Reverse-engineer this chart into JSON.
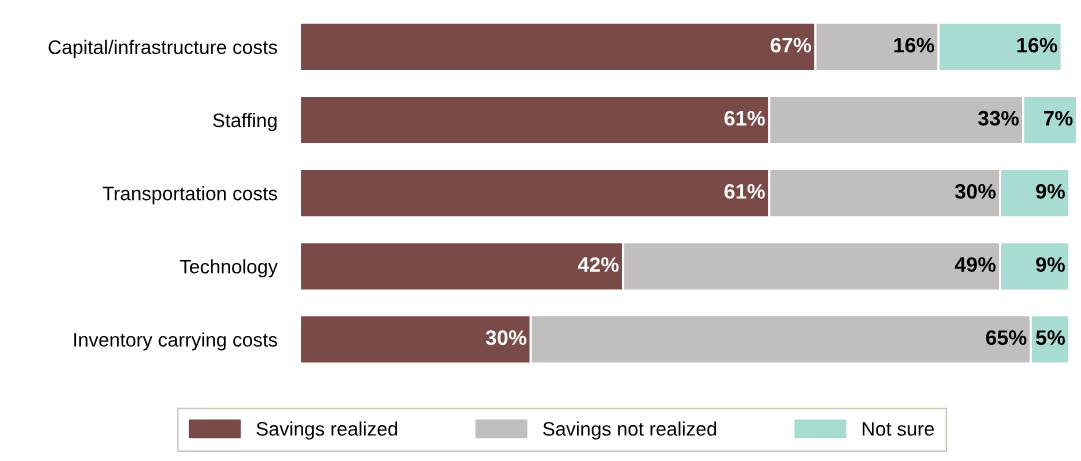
{
  "chart_data": {
    "type": "bar",
    "orientation": "horizontal",
    "stacked": true,
    "categories": [
      "Capital/infrastructure costs",
      "Staffing",
      "Transportation costs",
      "Technology",
      "Inventory carrying costs"
    ],
    "series": [
      {
        "name": "Savings realized",
        "color": "#7a4a48",
        "values": [
          67,
          61,
          61,
          42,
          30
        ],
        "value_labels": [
          "67%",
          "61%",
          "61%",
          "42%",
          "30%"
        ]
      },
      {
        "name": "Savings not realized",
        "color": "#c1bebe",
        "values": [
          16,
          33,
          30,
          49,
          65
        ],
        "value_labels": [
          "16%",
          "33%",
          "30%",
          "49%",
          "65%"
        ]
      },
      {
        "name": "Not sure",
        "color": "#a8dcd3",
        "values": [
          16,
          7,
          9,
          9,
          5
        ],
        "value_labels": [
          "16%",
          "7%",
          "9%",
          "9%",
          "5%"
        ]
      }
    ],
    "tick_labels": "y",
    "legend": "bottom",
    "grid": false
  }
}
